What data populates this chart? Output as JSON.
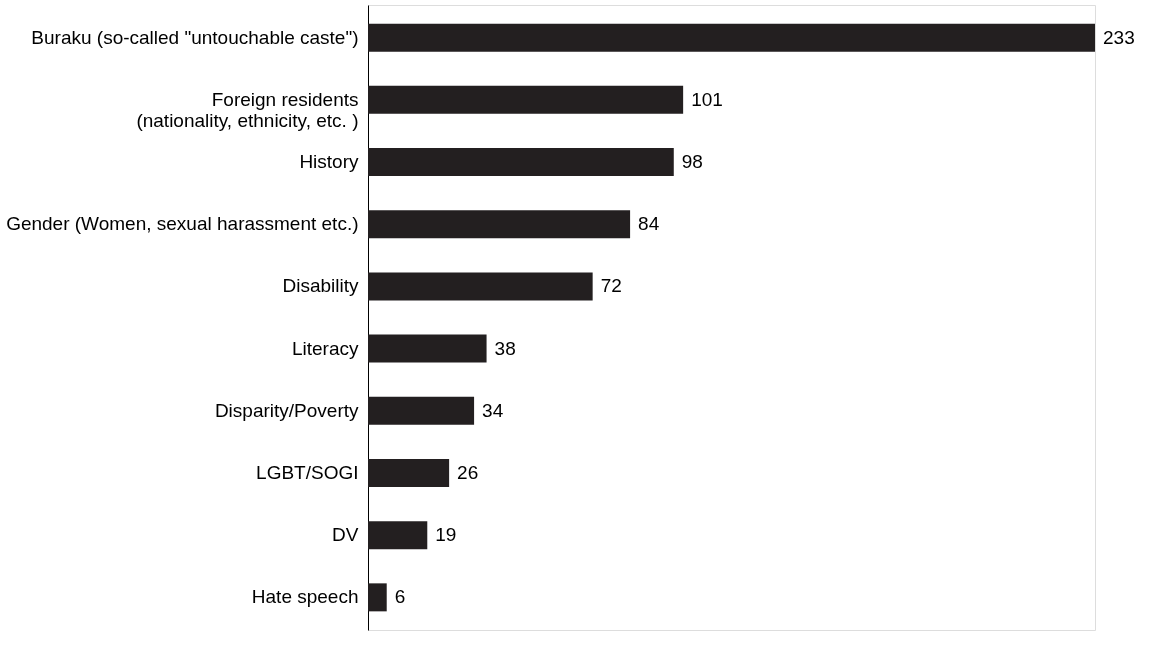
{
  "chart_data": {
    "type": "bar",
    "orientation": "horizontal",
    "data_labels": true,
    "categories": [
      "Buraku (so-called \"untouchable caste\")",
      "Foreign residents\n(nationality, ethnicity, etc. )",
      "History",
      "Gender (Women, sexual harassment etc.)",
      "Disability",
      "Literacy",
      "Disparity/Poverty",
      "LGBT/SOGI",
      "DV",
      "Hate speech"
    ],
    "values": [
      233,
      101,
      98,
      84,
      72,
      38,
      34,
      26,
      19,
      6
    ],
    "color": "#231f20",
    "grid": false
  }
}
